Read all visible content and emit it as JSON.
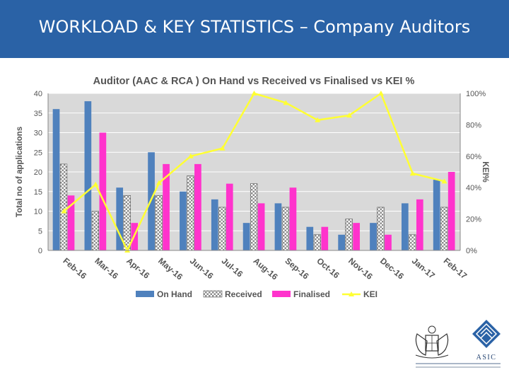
{
  "slide": {
    "title": "WORKLOAD & KEY STATISTICS – Company Auditors"
  },
  "chart_data": {
    "type": "bar",
    "title": "Auditor (AAC & RCA ) On Hand vs Received vs Finalised vs KEI %",
    "categories": [
      "Feb-16",
      "Mar-16",
      "Apr-16",
      "May-16",
      "Jun-16",
      "Jul-16",
      "Aug-16",
      "Sep-16",
      "Oct-16",
      "Nov-16",
      "Dec-16",
      "Jan-17",
      "Feb-17"
    ],
    "ylabel": "Total no of applications",
    "y2label": "KEI%",
    "ylim": [
      0,
      40
    ],
    "y2lim": [
      0,
      100
    ],
    "yticks": [
      "0",
      "5",
      "10",
      "15",
      "20",
      "25",
      "30",
      "35",
      "40"
    ],
    "y2ticks": [
      "0%",
      "20%",
      "40%",
      "60%",
      "80%",
      "100%"
    ],
    "grid": true,
    "legend_position": "bottom",
    "series": [
      {
        "name": "On Hand",
        "type": "bar",
        "color": "#4f81bd",
        "values": [
          36,
          38,
          16,
          25,
          15,
          13,
          7,
          12,
          6,
          4,
          7,
          12,
          18
        ]
      },
      {
        "name": "Received",
        "type": "bar",
        "color": "#d9d9d9",
        "pattern": "checker",
        "values": [
          22,
          10,
          14,
          14,
          19,
          11,
          17,
          11,
          4,
          8,
          11,
          4,
          11
        ]
      },
      {
        "name": "Finalised",
        "type": "bar",
        "color": "#ff33cc",
        "values": [
          14,
          30,
          7,
          22,
          22,
          17,
          12,
          16,
          6,
          7,
          4,
          13,
          20
        ]
      },
      {
        "name": "KEI",
        "type": "line",
        "axis": "right",
        "color": "#ffff33",
        "values": [
          25,
          42,
          0,
          43,
          60,
          65,
          100,
          94,
          83,
          86,
          100,
          49,
          44
        ]
      }
    ]
  },
  "logo": {
    "name": "asic-logo",
    "text": "ASIC"
  }
}
